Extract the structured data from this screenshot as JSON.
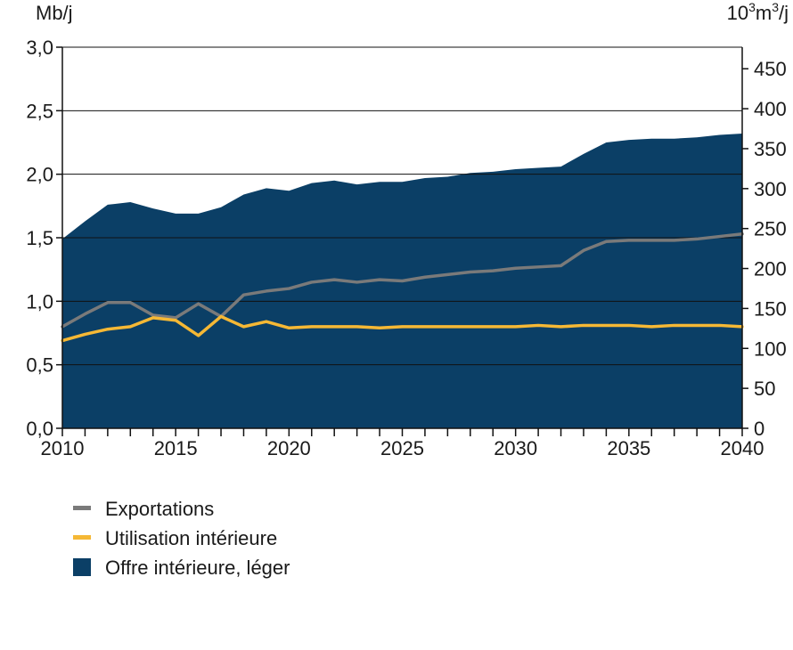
{
  "chart_data": {
    "type": "area",
    "title": "",
    "ylabel_left": "Mb/j",
    "ylabel_right_base": "10",
    "ylabel_right_sup1": "3",
    "ylabel_right_mid": "m",
    "ylabel_right_sup2": "3",
    "ylabel_right_tail": "/j",
    "ylim_left": [
      0,
      3.0
    ],
    "ylim_right": [
      0,
      477
    ],
    "xlim": [
      2010,
      2040
    ],
    "y_ticks_left": [
      {
        "value": 0.0,
        "label": "0,0"
      },
      {
        "value": 0.5,
        "label": "0,5"
      },
      {
        "value": 1.0,
        "label": "1,0"
      },
      {
        "value": 1.5,
        "label": "1,5"
      },
      {
        "value": 2.0,
        "label": "2,0"
      },
      {
        "value": 2.5,
        "label": "2,5"
      },
      {
        "value": 3.0,
        "label": "3,0"
      }
    ],
    "y_ticks_right": [
      {
        "value": 0,
        "label": "0"
      },
      {
        "value": 50,
        "label": "50"
      },
      {
        "value": 100,
        "label": "100"
      },
      {
        "value": 150,
        "label": "150"
      },
      {
        "value": 200,
        "label": "200"
      },
      {
        "value": 250,
        "label": "250"
      },
      {
        "value": 300,
        "label": "300"
      },
      {
        "value": 350,
        "label": "350"
      },
      {
        "value": 400,
        "label": "400"
      },
      {
        "value": 450,
        "label": "450"
      }
    ],
    "x_ticks": [
      {
        "value": 2010,
        "label": "2010"
      },
      {
        "value": 2015,
        "label": "2015"
      },
      {
        "value": 2020,
        "label": "2020"
      },
      {
        "value": 2025,
        "label": "2025"
      },
      {
        "value": 2030,
        "label": "2030"
      },
      {
        "value": 2035,
        "label": "2035"
      },
      {
        "value": 2040,
        "label": "2040"
      }
    ],
    "x": [
      2010,
      2011,
      2012,
      2013,
      2014,
      2015,
      2016,
      2017,
      2018,
      2019,
      2020,
      2021,
      2022,
      2023,
      2024,
      2025,
      2026,
      2027,
      2028,
      2029,
      2030,
      2031,
      2032,
      2033,
      2034,
      2035,
      2036,
      2037,
      2038,
      2039,
      2040
    ],
    "series": [
      {
        "name": "Offre intérieure, léger",
        "kind": "area",
        "color": "#0b3f66",
        "values": [
          1.49,
          1.63,
          1.76,
          1.78,
          1.73,
          1.69,
          1.69,
          1.74,
          1.84,
          1.89,
          1.87,
          1.93,
          1.95,
          1.92,
          1.94,
          1.94,
          1.97,
          1.98,
          2.01,
          2.02,
          2.04,
          2.05,
          2.06,
          2.16,
          2.25,
          2.27,
          2.28,
          2.28,
          2.29,
          2.31,
          2.32
        ]
      },
      {
        "name": "Exportations",
        "kind": "line",
        "color": "#7a7a7a",
        "values": [
          0.8,
          0.9,
          0.99,
          0.99,
          0.89,
          0.87,
          0.98,
          0.88,
          1.05,
          1.08,
          1.1,
          1.15,
          1.17,
          1.15,
          1.17,
          1.16,
          1.19,
          1.21,
          1.23,
          1.24,
          1.26,
          1.27,
          1.28,
          1.4,
          1.47,
          1.48,
          1.48,
          1.48,
          1.49,
          1.51,
          1.53
        ]
      },
      {
        "name": "Utilisation intérieure",
        "kind": "line",
        "color": "#f5b835",
        "values": [
          0.69,
          0.74,
          0.78,
          0.8,
          0.87,
          0.85,
          0.73,
          0.88,
          0.8,
          0.84,
          0.79,
          0.8,
          0.8,
          0.8,
          0.79,
          0.8,
          0.8,
          0.8,
          0.8,
          0.8,
          0.8,
          0.81,
          0.8,
          0.81,
          0.81,
          0.81,
          0.8,
          0.81,
          0.81,
          0.81,
          0.8
        ]
      }
    ],
    "legend_position": "bottom-left",
    "grid": true
  },
  "legend": {
    "items": [
      {
        "label": "Exportations",
        "color": "#7a7a7a",
        "shape": "line"
      },
      {
        "label": "Utilisation intérieure",
        "color": "#f5b835",
        "shape": "line"
      },
      {
        "label": "Offre intérieure, léger",
        "color": "#0b3f66",
        "shape": "square"
      }
    ]
  }
}
